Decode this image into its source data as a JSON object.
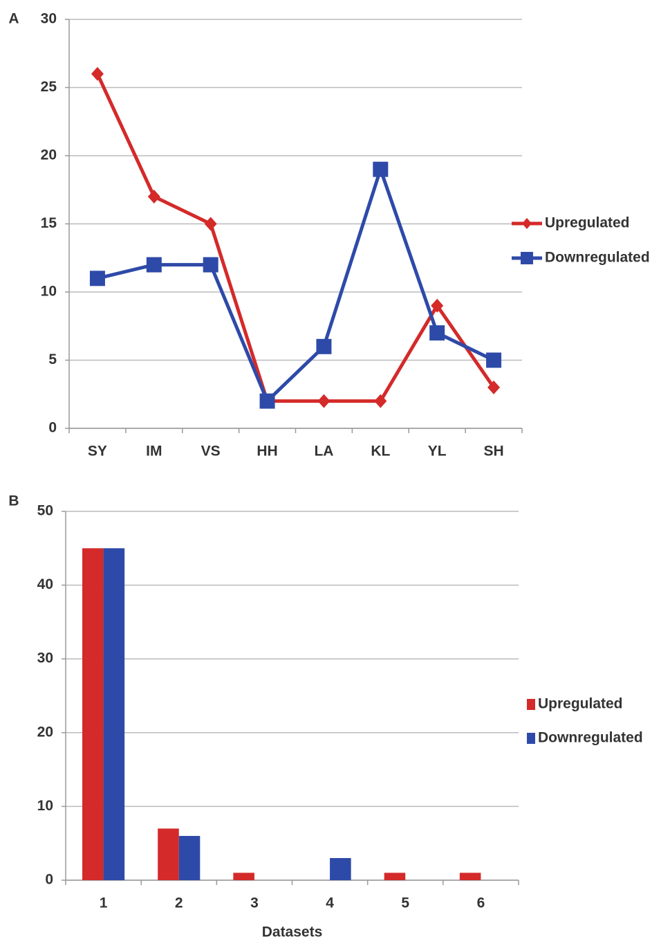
{
  "chart_data": [
    {
      "type": "line",
      "label": "A",
      "categories": [
        "SY",
        "IM",
        "VS",
        "HH",
        "LA",
        "KL",
        "YL",
        "SH"
      ],
      "series": [
        {
          "name": "Upregulated",
          "color": "#d42a2a",
          "values": [
            26,
            17,
            15,
            2,
            2,
            2,
            9,
            3
          ]
        },
        {
          "name": "Downregulated",
          "color": "#2e4aa8",
          "values": [
            11,
            12,
            12,
            2,
            6,
            19,
            7,
            5
          ]
        }
      ],
      "ylim": [
        0,
        30
      ],
      "yticks": [
        0,
        5,
        10,
        15,
        20,
        25,
        30
      ],
      "grid": true,
      "legend": "right"
    },
    {
      "type": "bar",
      "label": "B",
      "xlabel": "Datasets",
      "categories": [
        "1",
        "2",
        "3",
        "4",
        "5",
        "6"
      ],
      "series": [
        {
          "name": "Upregulated",
          "color": "#d42a2a",
          "values": [
            45,
            7,
            1,
            0,
            1,
            1
          ]
        },
        {
          "name": "Downregulated",
          "color": "#2e4aa8",
          "values": [
            45,
            6,
            0,
            3,
            0,
            0
          ]
        }
      ],
      "ylim": [
        0,
        50
      ],
      "yticks": [
        0,
        10,
        20,
        30,
        40,
        50
      ],
      "grid": true,
      "legend": "right"
    }
  ]
}
